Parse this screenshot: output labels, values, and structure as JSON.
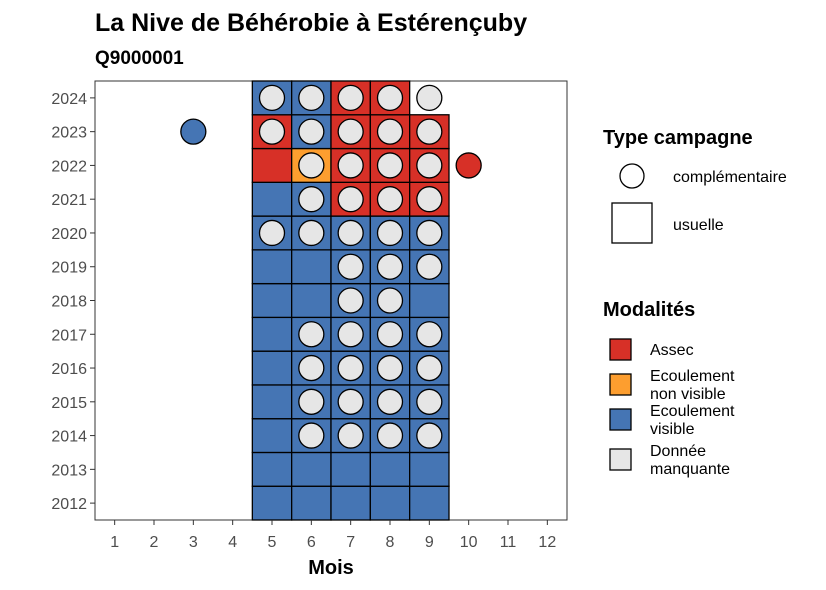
{
  "chart_data": {
    "type": "heatmap",
    "title": "La Nive de Béhérobie à Estérençuby",
    "subtitle": "Q9000001",
    "xlabel": "Mois",
    "ylabel": "",
    "x_ticks": [
      "1",
      "2",
      "3",
      "4",
      "5",
      "6",
      "7",
      "8",
      "9",
      "10",
      "11",
      "12"
    ],
    "y_ticks": [
      "2012",
      "2013",
      "2014",
      "2015",
      "2016",
      "2017",
      "2018",
      "2019",
      "2020",
      "2021",
      "2022",
      "2023",
      "2024"
    ],
    "xlim": [
      0.5,
      12.5
    ],
    "ylim": [
      2011.5,
      2024.5
    ],
    "colors": {
      "Assec": "#d73027",
      "Ecoulement non visible": "#fd9e2f",
      "Ecoulement visible": "#4575b4",
      "Donnée manquante": "#e6e6e6"
    },
    "tiles": [
      {
        "year": 2012,
        "month": 5,
        "cat": "Ecoulement visible"
      },
      {
        "year": 2012,
        "month": 6,
        "cat": "Ecoulement visible"
      },
      {
        "year": 2012,
        "month": 7,
        "cat": "Ecoulement visible"
      },
      {
        "year": 2012,
        "month": 8,
        "cat": "Ecoulement visible"
      },
      {
        "year": 2012,
        "month": 9,
        "cat": "Ecoulement visible"
      },
      {
        "year": 2013,
        "month": 5,
        "cat": "Ecoulement visible"
      },
      {
        "year": 2013,
        "month": 6,
        "cat": "Ecoulement visible"
      },
      {
        "year": 2013,
        "month": 7,
        "cat": "Ecoulement visible"
      },
      {
        "year": 2013,
        "month": 8,
        "cat": "Ecoulement visible"
      },
      {
        "year": 2013,
        "month": 9,
        "cat": "Ecoulement visible"
      },
      {
        "year": 2014,
        "month": 5,
        "cat": "Ecoulement visible"
      },
      {
        "year": 2014,
        "month": 6,
        "cat": "Ecoulement visible"
      },
      {
        "year": 2014,
        "month": 7,
        "cat": "Ecoulement visible"
      },
      {
        "year": 2014,
        "month": 8,
        "cat": "Ecoulement visible"
      },
      {
        "year": 2014,
        "month": 9,
        "cat": "Ecoulement visible"
      },
      {
        "year": 2015,
        "month": 5,
        "cat": "Ecoulement visible"
      },
      {
        "year": 2015,
        "month": 6,
        "cat": "Ecoulement visible"
      },
      {
        "year": 2015,
        "month": 7,
        "cat": "Ecoulement visible"
      },
      {
        "year": 2015,
        "month": 8,
        "cat": "Ecoulement visible"
      },
      {
        "year": 2015,
        "month": 9,
        "cat": "Ecoulement visible"
      },
      {
        "year": 2016,
        "month": 5,
        "cat": "Ecoulement visible"
      },
      {
        "year": 2016,
        "month": 6,
        "cat": "Ecoulement visible"
      },
      {
        "year": 2016,
        "month": 7,
        "cat": "Ecoulement visible"
      },
      {
        "year": 2016,
        "month": 8,
        "cat": "Ecoulement visible"
      },
      {
        "year": 2016,
        "month": 9,
        "cat": "Ecoulement visible"
      },
      {
        "year": 2017,
        "month": 5,
        "cat": "Ecoulement visible"
      },
      {
        "year": 2017,
        "month": 6,
        "cat": "Ecoulement visible"
      },
      {
        "year": 2017,
        "month": 7,
        "cat": "Ecoulement visible"
      },
      {
        "year": 2017,
        "month": 8,
        "cat": "Ecoulement visible"
      },
      {
        "year": 2017,
        "month": 9,
        "cat": "Ecoulement visible"
      },
      {
        "year": 2018,
        "month": 5,
        "cat": "Ecoulement visible"
      },
      {
        "year": 2018,
        "month": 6,
        "cat": "Ecoulement visible"
      },
      {
        "year": 2018,
        "month": 7,
        "cat": "Ecoulement visible"
      },
      {
        "year": 2018,
        "month": 8,
        "cat": "Ecoulement visible"
      },
      {
        "year": 2018,
        "month": 9,
        "cat": "Ecoulement visible"
      },
      {
        "year": 2019,
        "month": 5,
        "cat": "Ecoulement visible"
      },
      {
        "year": 2019,
        "month": 6,
        "cat": "Ecoulement visible"
      },
      {
        "year": 2019,
        "month": 7,
        "cat": "Ecoulement visible"
      },
      {
        "year": 2019,
        "month": 8,
        "cat": "Ecoulement visible"
      },
      {
        "year": 2019,
        "month": 9,
        "cat": "Ecoulement visible"
      },
      {
        "year": 2020,
        "month": 5,
        "cat": "Ecoulement visible"
      },
      {
        "year": 2020,
        "month": 6,
        "cat": "Ecoulement visible"
      },
      {
        "year": 2020,
        "month": 7,
        "cat": "Ecoulement visible"
      },
      {
        "year": 2020,
        "month": 8,
        "cat": "Ecoulement visible"
      },
      {
        "year": 2020,
        "month": 9,
        "cat": "Ecoulement visible"
      },
      {
        "year": 2021,
        "month": 5,
        "cat": "Ecoulement visible"
      },
      {
        "year": 2021,
        "month": 6,
        "cat": "Ecoulement visible"
      },
      {
        "year": 2021,
        "month": 7,
        "cat": "Assec"
      },
      {
        "year": 2021,
        "month": 8,
        "cat": "Assec"
      },
      {
        "year": 2021,
        "month": 9,
        "cat": "Assec"
      },
      {
        "year": 2022,
        "month": 5,
        "cat": "Assec"
      },
      {
        "year": 2022,
        "month": 6,
        "cat": "Ecoulement non visible"
      },
      {
        "year": 2022,
        "month": 7,
        "cat": "Assec"
      },
      {
        "year": 2022,
        "month": 8,
        "cat": "Assec"
      },
      {
        "year": 2022,
        "month": 9,
        "cat": "Assec"
      },
      {
        "year": 2023,
        "month": 5,
        "cat": "Assec"
      },
      {
        "year": 2023,
        "month": 6,
        "cat": "Ecoulement visible"
      },
      {
        "year": 2023,
        "month": 7,
        "cat": "Assec"
      },
      {
        "year": 2023,
        "month": 8,
        "cat": "Assec"
      },
      {
        "year": 2023,
        "month": 9,
        "cat": "Assec"
      },
      {
        "year": 2024,
        "month": 5,
        "cat": "Ecoulement visible"
      },
      {
        "year": 2024,
        "month": 6,
        "cat": "Ecoulement visible"
      },
      {
        "year": 2024,
        "month": 7,
        "cat": "Assec"
      },
      {
        "year": 2024,
        "month": 8,
        "cat": "Assec"
      }
    ],
    "points": [
      {
        "year": 2014,
        "month": 6,
        "cat": "Donnée manquante"
      },
      {
        "year": 2014,
        "month": 7,
        "cat": "Donnée manquante"
      },
      {
        "year": 2014,
        "month": 8,
        "cat": "Donnée manquante"
      },
      {
        "year": 2014,
        "month": 9,
        "cat": "Donnée manquante"
      },
      {
        "year": 2015,
        "month": 6,
        "cat": "Donnée manquante"
      },
      {
        "year": 2015,
        "month": 7,
        "cat": "Donnée manquante"
      },
      {
        "year": 2015,
        "month": 8,
        "cat": "Donnée manquante"
      },
      {
        "year": 2015,
        "month": 9,
        "cat": "Donnée manquante"
      },
      {
        "year": 2016,
        "month": 6,
        "cat": "Donnée manquante"
      },
      {
        "year": 2016,
        "month": 7,
        "cat": "Donnée manquante"
      },
      {
        "year": 2016,
        "month": 8,
        "cat": "Donnée manquante"
      },
      {
        "year": 2016,
        "month": 9,
        "cat": "Donnée manquante"
      },
      {
        "year": 2017,
        "month": 6,
        "cat": "Donnée manquante"
      },
      {
        "year": 2017,
        "month": 7,
        "cat": "Donnée manquante"
      },
      {
        "year": 2017,
        "month": 8,
        "cat": "Donnée manquante"
      },
      {
        "year": 2017,
        "month": 9,
        "cat": "Donnée manquante"
      },
      {
        "year": 2018,
        "month": 7,
        "cat": "Donnée manquante"
      },
      {
        "year": 2018,
        "month": 8,
        "cat": "Donnée manquante"
      },
      {
        "year": 2019,
        "month": 7,
        "cat": "Donnée manquante"
      },
      {
        "year": 2019,
        "month": 8,
        "cat": "Donnée manquante"
      },
      {
        "year": 2019,
        "month": 9,
        "cat": "Donnée manquante"
      },
      {
        "year": 2020,
        "month": 5,
        "cat": "Donnée manquante"
      },
      {
        "year": 2020,
        "month": 6,
        "cat": "Donnée manquante"
      },
      {
        "year": 2020,
        "month": 7,
        "cat": "Donnée manquante"
      },
      {
        "year": 2020,
        "month": 8,
        "cat": "Donnée manquante"
      },
      {
        "year": 2020,
        "month": 9,
        "cat": "Donnée manquante"
      },
      {
        "year": 2021,
        "month": 6,
        "cat": "Donnée manquante"
      },
      {
        "year": 2021,
        "month": 7,
        "cat": "Donnée manquante"
      },
      {
        "year": 2021,
        "month": 8,
        "cat": "Donnée manquante"
      },
      {
        "year": 2021,
        "month": 9,
        "cat": "Donnée manquante"
      },
      {
        "year": 2022,
        "month": 6,
        "cat": "Donnée manquante"
      },
      {
        "year": 2022,
        "month": 7,
        "cat": "Donnée manquante"
      },
      {
        "year": 2022,
        "month": 8,
        "cat": "Donnée manquante"
      },
      {
        "year": 2022,
        "month": 9,
        "cat": "Donnée manquante"
      },
      {
        "year": 2022,
        "month": 10,
        "cat": "Assec"
      },
      {
        "year": 2023,
        "month": 3,
        "cat": "Ecoulement visible"
      },
      {
        "year": 2023,
        "month": 5,
        "cat": "Donnée manquante"
      },
      {
        "year": 2023,
        "month": 6,
        "cat": "Donnée manquante"
      },
      {
        "year": 2023,
        "month": 7,
        "cat": "Donnée manquante"
      },
      {
        "year": 2023,
        "month": 8,
        "cat": "Donnée manquante"
      },
      {
        "year": 2023,
        "month": 9,
        "cat": "Donnée manquante"
      },
      {
        "year": 2024,
        "month": 5,
        "cat": "Donnée manquante"
      },
      {
        "year": 2024,
        "month": 6,
        "cat": "Donnée manquante"
      },
      {
        "year": 2024,
        "month": 7,
        "cat": "Donnée manquante"
      },
      {
        "year": 2024,
        "month": 8,
        "cat": "Donnée manquante"
      },
      {
        "year": 2024,
        "month": 9,
        "cat": "Donnée manquante"
      }
    ],
    "legend": {
      "shape_title": "Type campagne",
      "shape_items": [
        {
          "label": "complémentaire",
          "shape": "circle"
        },
        {
          "label": "usuelle",
          "shape": "square"
        }
      ],
      "fill_title": "Modalités",
      "fill_items": [
        {
          "lines": [
            "Assec"
          ],
          "color": "#d73027"
        },
        {
          "lines": [
            "Ecoulement",
            "non visible"
          ],
          "color": "#fd9e2f"
        },
        {
          "lines": [
            "Ecoulement",
            "visible"
          ],
          "color": "#4575b4"
        },
        {
          "lines": [
            "Donnée",
            "manquante"
          ],
          "color": "#e6e6e6"
        }
      ],
      "placement": "right"
    },
    "grid": false
  }
}
